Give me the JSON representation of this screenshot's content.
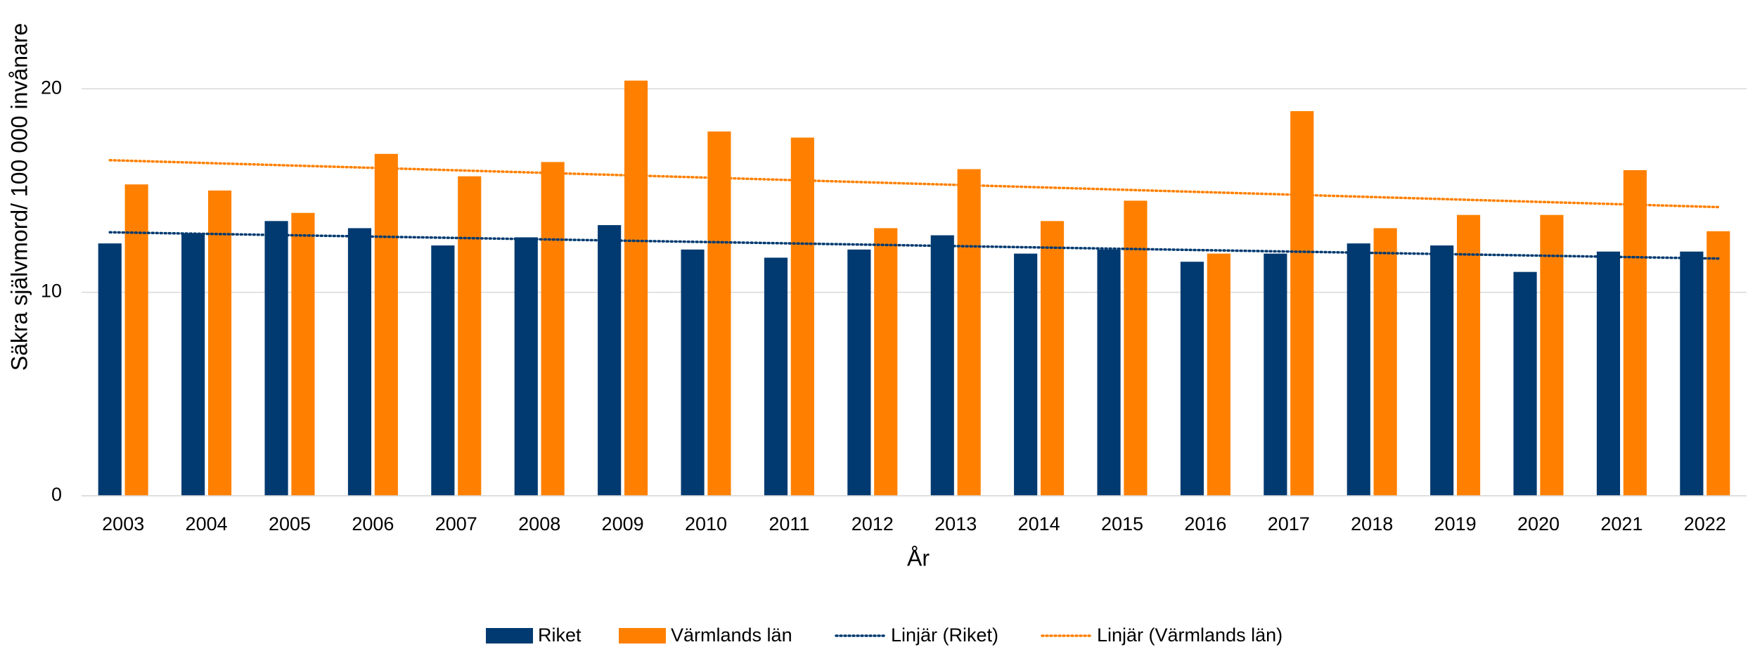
{
  "chart_data": {
    "type": "bar",
    "y_label": "Säkra självmord/ 100 000 invånare",
    "x_label": "År",
    "categories": [
      "2003",
      "2004",
      "2005",
      "2006",
      "2007",
      "2008",
      "2009",
      "2010",
      "2011",
      "2012",
      "2013",
      "2014",
      "2015",
      "2016",
      "2017",
      "2018",
      "2019",
      "2020",
      "2021",
      "2022"
    ],
    "series": [
      {
        "name": "Riket",
        "color": "#003a70",
        "values": [
          12.4,
          12.9,
          13.5,
          13.15,
          12.3,
          12.7,
          13.3,
          12.1,
          11.7,
          12.1,
          12.8,
          11.9,
          12.1,
          11.5,
          11.9,
          12.4,
          12.3,
          11.0,
          12.0,
          12.0
        ],
        "trendline": {
          "name": "Linjär (Riket)",
          "color": "#003a70"
        }
      },
      {
        "name": "Värmlands län",
        "color": "#ff8000",
        "values": [
          15.3,
          15.0,
          13.9,
          16.8,
          15.7,
          16.4,
          20.4,
          17.9,
          17.6,
          13.15,
          16.05,
          13.5,
          14.5,
          11.9,
          18.9,
          13.15,
          13.8,
          13.8,
          16.0,
          13.0
        ],
        "trendline": {
          "name": "Linjär (Värmlands län)",
          "color": "#ff8000"
        }
      }
    ],
    "ylim": [
      0,
      22
    ],
    "yticks": [
      0,
      10,
      20
    ],
    "grid": true,
    "legend": "bottom"
  }
}
